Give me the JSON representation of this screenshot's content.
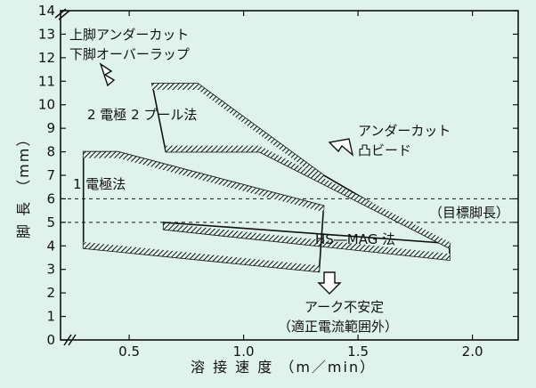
{
  "chart_data": {
    "type": "area",
    "xlabel": "溶 接 速 度 （m／min）",
    "ylabel": "脚 長 （mm）",
    "xlim": [
      0.2,
      2.2
    ],
    "ylim": [
      0,
      14
    ],
    "x_ticks": [
      {
        "value": 0.5,
        "label": "0.5"
      },
      {
        "value": 1.0,
        "label": "1.0"
      },
      {
        "value": 1.5,
        "label": "1.5"
      },
      {
        "value": 2.0,
        "label": "2.0"
      }
    ],
    "y_ticks": [
      {
        "value": 0,
        "label": "0"
      },
      {
        "value": 1,
        "label": "1"
      },
      {
        "value": 2,
        "label": "2"
      },
      {
        "value": 3,
        "label": "3"
      },
      {
        "value": 4,
        "label": "4"
      },
      {
        "value": 5,
        "label": "5"
      },
      {
        "value": 6,
        "label": "6"
      },
      {
        "value": 7,
        "label": "7"
      },
      {
        "value": 8,
        "label": "8"
      },
      {
        "value": 9,
        "label": "9"
      },
      {
        "value": 10,
        "label": "10"
      },
      {
        "value": 11,
        "label": "11"
      },
      {
        "value": 12,
        "label": "12"
      },
      {
        "value": 13,
        "label": "13"
      },
      {
        "value": 14,
        "label": "14"
      }
    ],
    "target_lines": [
      {
        "y": 6.0
      },
      {
        "y": 5.0,
        "label": "（目標脚長）"
      }
    ],
    "regions": [
      {
        "name": "HS―MAG 法",
        "upper": [
          [
            0.65,
            5.0
          ],
          [
            1.9,
            4.1
          ]
        ],
        "lower": [
          [
            0.65,
            4.7
          ],
          [
            1.9,
            3.4
          ]
        ],
        "upper_hatch": false
      },
      {
        "name": "2 電極 2 プール法",
        "upper": [
          [
            0.6,
            10.9
          ],
          [
            0.8,
            10.9
          ],
          [
            1.35,
            7.0
          ]
        ],
        "lower": [
          [
            0.66,
            8.0
          ],
          [
            1.07,
            8.0
          ],
          [
            1.9,
            3.9
          ]
        ],
        "upper_hatch": true
      },
      {
        "name": "1 電極法",
        "upper": [
          [
            0.3,
            8.0
          ],
          [
            0.45,
            8.0
          ],
          [
            1.35,
            5.7
          ]
        ],
        "lower": [
          [
            0.3,
            3.9
          ],
          [
            1.33,
            2.9
          ]
        ],
        "upper_hatch": true
      }
    ],
    "annotations": [
      {
        "lines": [
          "上脚アンダーカット",
          "下脚オーバーラップ"
        ]
      },
      {
        "lines": [
          "アンダーカット",
          "凸ビード"
        ]
      },
      {
        "lines": [
          "アーク不安定",
          "（適正電流範囲外）"
        ]
      }
    ],
    "label_1elec": "1 電極法",
    "label_2elec": "2 電極 2 プール法",
    "label_hsmag": "HS―MAG 法"
  }
}
